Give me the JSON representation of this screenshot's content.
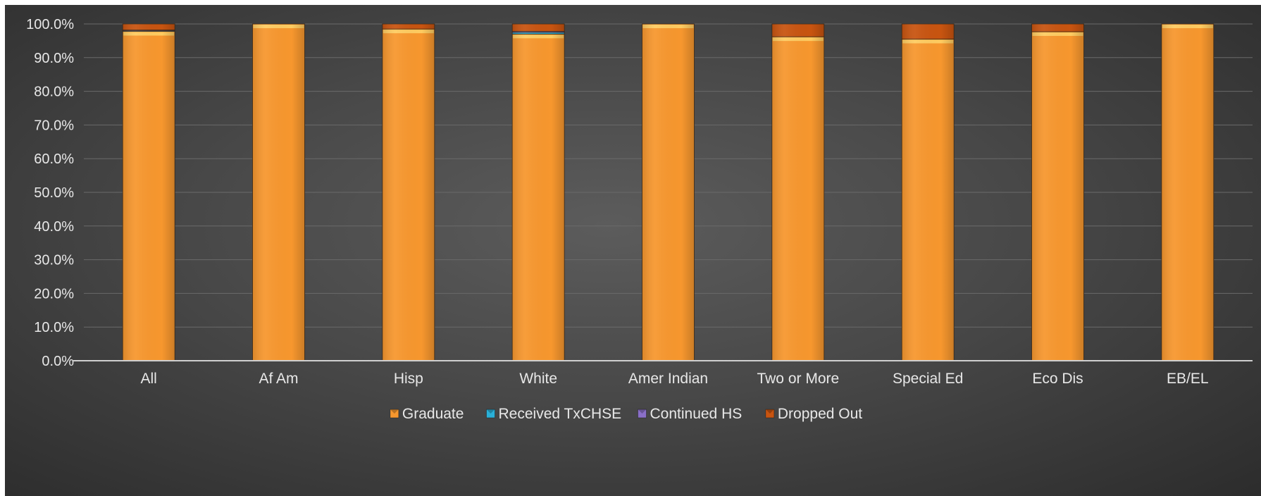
{
  "chart_data": {
    "type": "bar",
    "stacked": true,
    "title": "",
    "xlabel": "",
    "ylabel": "",
    "ylim": [
      0,
      100
    ],
    "y_tick_step": 10,
    "y_tick_labels": [
      "0.0%",
      "10.0%",
      "20.0%",
      "30.0%",
      "40.0%",
      "50.0%",
      "60.0%",
      "70.0%",
      "80.0%",
      "90.0%",
      "100.0%"
    ],
    "grid": true,
    "legend_position": "bottom",
    "categories": [
      "All",
      "Af Am",
      "Hisp",
      "White",
      "Amer Indian",
      "Two or More",
      "Special Ed",
      "Eco Dis",
      "EB/EL"
    ],
    "series": [
      {
        "name": "Graduate",
        "color": "#f7972e",
        "values": [
          97.8,
          100.0,
          98.5,
          97.0,
          100.0,
          96.2,
          95.5,
          97.7,
          100.0
        ]
      },
      {
        "name": "Received TxCHSE",
        "color": "#2ab0d8",
        "values": [
          0.2,
          0.0,
          0.0,
          0.5,
          0.0,
          0.0,
          0.0,
          0.0,
          0.0
        ]
      },
      {
        "name": "Continued HS",
        "color": "#8a6fc8",
        "values": [
          0.2,
          0.0,
          0.0,
          0.3,
          0.0,
          0.0,
          0.0,
          0.0,
          0.0
        ]
      },
      {
        "name": "Dropped Out",
        "color": "#c85410",
        "values": [
          1.8,
          0.0,
          1.5,
          2.2,
          0.0,
          3.8,
          4.5,
          2.3,
          0.0
        ]
      }
    ]
  }
}
